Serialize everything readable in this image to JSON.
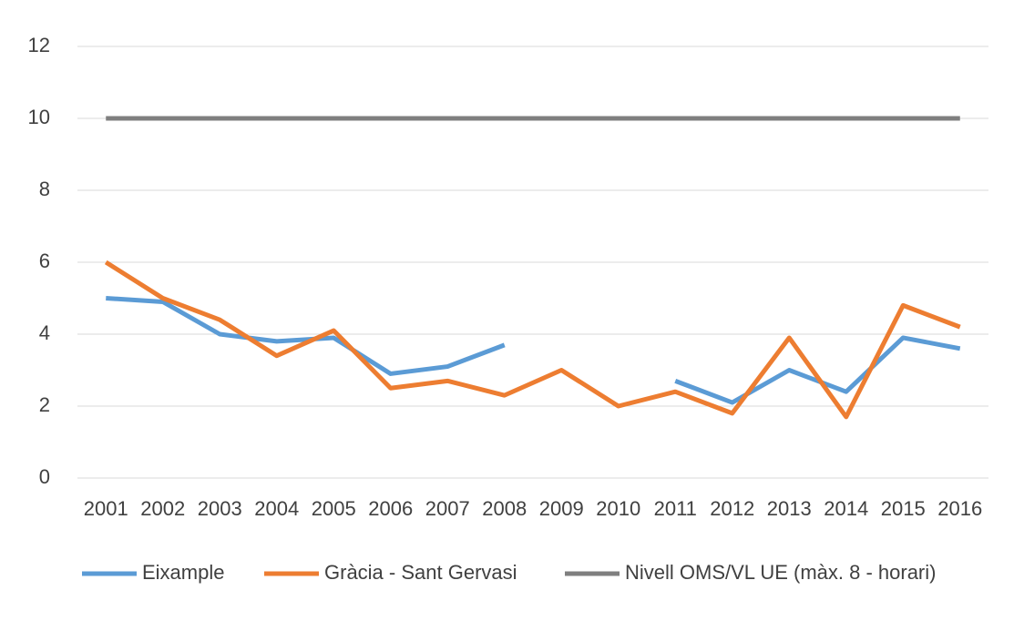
{
  "chart_data": {
    "type": "line",
    "categories": [
      "2001",
      "2002",
      "2003",
      "2004",
      "2005",
      "2006",
      "2007",
      "2008",
      "2009",
      "2010",
      "2011",
      "2012",
      "2013",
      "2014",
      "2015",
      "2016"
    ],
    "series": [
      {
        "name": "Eixample",
        "color": "#5b9bd5",
        "values": [
          5.0,
          4.9,
          4.0,
          3.8,
          3.9,
          2.9,
          3.1,
          3.7,
          null,
          null,
          2.7,
          2.1,
          3.0,
          2.4,
          3.9,
          3.6
        ]
      },
      {
        "name": "Gràcia - Sant Gervasi",
        "color": "#ed7d31",
        "values": [
          6.0,
          5.0,
          4.4,
          3.4,
          4.1,
          2.5,
          2.7,
          2.3,
          3.0,
          2.0,
          2.4,
          1.8,
          3.9,
          1.7,
          4.8,
          4.2
        ]
      },
      {
        "name": "Nivell OMS/VL UE (màx. 8 - horari)",
        "color": "#7f7f7f",
        "values": [
          10,
          10,
          10,
          10,
          10,
          10,
          10,
          10,
          10,
          10,
          10,
          10,
          10,
          10,
          10,
          10
        ]
      }
    ],
    "ylim": [
      0,
      12
    ],
    "yticks": [
      0,
      2,
      4,
      6,
      8,
      10,
      12
    ],
    "grid": true
  }
}
